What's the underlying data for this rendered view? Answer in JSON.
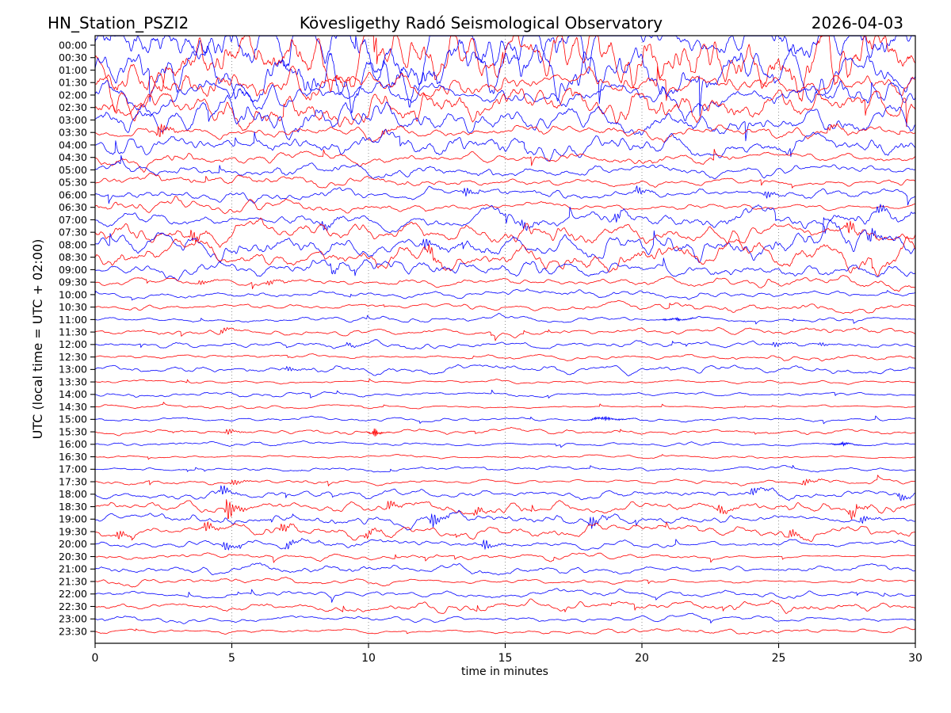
{
  "chart_data": {
    "type": "line",
    "subtype": "helicorder-seismogram",
    "title_left": "HN_Station_PSZI2",
    "title_center": "Kövesligethy Radó Seismological Observatory",
    "title_right": "2026-04-03",
    "xlabel": "time in minutes",
    "ylabel": "UTC (local time = UTC + 02:00)",
    "xlim": [
      0,
      30
    ],
    "x_ticks": [
      0,
      5,
      10,
      15,
      20,
      25,
      30
    ],
    "x_grid_minutes": [
      5,
      10,
      15,
      20,
      25
    ],
    "grid_style": "dotted",
    "legend": "none",
    "colors": {
      "b": "#0000ff",
      "r": "#ff0000",
      "frame": "#000000",
      "grid": "#888888",
      "background": "#ffffff"
    },
    "trace_note": "48 half-hour traces, 30 minutes each, alternating blue/red; amp = typical peak amplitude in px; events = transient bursts at minute m with peak amplitude a px",
    "traces": [
      {
        "label": "00:00",
        "c": "b",
        "amp": 22,
        "events": []
      },
      {
        "label": "00:30",
        "c": "r",
        "amp": 20,
        "events": []
      },
      {
        "label": "01:00",
        "c": "b",
        "amp": 22,
        "events": []
      },
      {
        "label": "01:30",
        "c": "r",
        "amp": 18,
        "events": []
      },
      {
        "label": "02:00",
        "c": "b",
        "amp": 17,
        "events": []
      },
      {
        "label": "02:30",
        "c": "r",
        "amp": 14,
        "events": []
      },
      {
        "label": "03:00",
        "c": "b",
        "amp": 12,
        "events": []
      },
      {
        "label": "03:30",
        "c": "r",
        "amp": 4.5,
        "events": [
          {
            "m": 2.3,
            "a": 12
          },
          {
            "m": 10.5,
            "a": 4
          },
          {
            "m": 26.8,
            "a": 5
          }
        ]
      },
      {
        "label": "04:00",
        "c": "b",
        "amp": 8,
        "events": []
      },
      {
        "label": "04:30",
        "c": "r",
        "amp": 6.5,
        "events": []
      },
      {
        "label": "05:00",
        "c": "b",
        "amp": 5.5,
        "events": []
      },
      {
        "label": "05:30",
        "c": "r",
        "amp": 4.5,
        "events": []
      },
      {
        "label": "06:00",
        "c": "b",
        "amp": 5,
        "events": [
          {
            "m": 13.5,
            "a": 7
          },
          {
            "m": 19.8,
            "a": 6
          },
          {
            "m": 24.5,
            "a": 6
          }
        ]
      },
      {
        "label": "06:30",
        "c": "r",
        "amp": 6,
        "events": []
      },
      {
        "label": "07:00",
        "c": "b",
        "amp": 6,
        "events": [
          {
            "m": 8.3,
            "a": 7
          },
          {
            "m": 15.6,
            "a": 7
          },
          {
            "m": 19.0,
            "a": 7
          },
          {
            "m": 28.6,
            "a": 8
          }
        ]
      },
      {
        "label": "07:30",
        "c": "r",
        "amp": 8,
        "events": [
          {
            "m": 3.5,
            "a": 10
          },
          {
            "m": 27.5,
            "a": 10
          }
        ]
      },
      {
        "label": "08:00",
        "c": "b",
        "amp": 8.5,
        "events": [
          {
            "m": 12.0,
            "a": 9
          },
          {
            "m": 28.3,
            "a": 10
          }
        ]
      },
      {
        "label": "08:30",
        "c": "r",
        "amp": 8.5,
        "events": [
          {
            "m": 12.2,
            "a": 9
          }
        ]
      },
      {
        "label": "09:00",
        "c": "b",
        "amp": 5,
        "events": [
          {
            "m": 8.6,
            "a": 6
          }
        ]
      },
      {
        "label": "09:30",
        "c": "r",
        "amp": 3.5,
        "events": [
          {
            "m": 3.8,
            "a": 4
          },
          {
            "m": 6.3,
            "a": 4
          }
        ]
      },
      {
        "label": "10:00",
        "c": "b",
        "amp": 2.2,
        "events": []
      },
      {
        "label": "10:30",
        "c": "r",
        "amp": 3,
        "events": []
      },
      {
        "label": "11:00",
        "c": "b",
        "amp": 2,
        "events": [
          {
            "m": 21.2,
            "a": 2.5,
            "f": 22,
            "w": 0.5
          }
        ]
      },
      {
        "label": "11:30",
        "c": "r",
        "amp": 2.8,
        "events": [
          {
            "m": 4.6,
            "a": 4
          }
        ]
      },
      {
        "label": "12:00",
        "c": "b",
        "amp": 2.6,
        "events": [
          {
            "m": 9.2,
            "a": 3
          },
          {
            "m": 24.8,
            "a": 4
          },
          {
            "m": 26.5,
            "a": 3
          }
        ]
      },
      {
        "label": "12:30",
        "c": "r",
        "amp": 1.9,
        "events": []
      },
      {
        "label": "13:00",
        "c": "b",
        "amp": 2.8,
        "events": [
          {
            "m": 7.0,
            "a": 4
          }
        ]
      },
      {
        "label": "13:30",
        "c": "r",
        "amp": 1.7,
        "events": []
      },
      {
        "label": "14:00",
        "c": "b",
        "amp": 2,
        "events": []
      },
      {
        "label": "14:30",
        "c": "r",
        "amp": 1.7,
        "events": []
      },
      {
        "label": "15:00",
        "c": "b",
        "amp": 2,
        "events": [
          {
            "m": 18.6,
            "a": 3.5,
            "f": 24,
            "w": 0.5
          }
        ]
      },
      {
        "label": "15:30",
        "c": "r",
        "amp": 1.8,
        "events": [
          {
            "m": 4.8,
            "a": 5
          },
          {
            "m": 10.2,
            "a": 7,
            "f": 18,
            "w": 0.2
          }
        ]
      },
      {
        "label": "16:00",
        "c": "b",
        "amp": 1.8,
        "events": [
          {
            "m": 27.3,
            "a": 3,
            "f": 20,
            "w": 0.4
          }
        ]
      },
      {
        "label": "16:30",
        "c": "r",
        "amp": 1.5,
        "events": []
      },
      {
        "label": "17:00",
        "c": "b",
        "amp": 1.7,
        "events": []
      },
      {
        "label": "17:30",
        "c": "r",
        "amp": 2.4,
        "events": [
          {
            "m": 5.0,
            "a": 5
          },
          {
            "m": 25.9,
            "a": 5
          }
        ]
      },
      {
        "label": "18:00",
        "c": "b",
        "amp": 3.4,
        "events": [
          {
            "m": 4.6,
            "a": 8
          },
          {
            "m": 24.0,
            "a": 6
          },
          {
            "m": 29.4,
            "a": 6
          }
        ]
      },
      {
        "label": "18:30",
        "c": "r",
        "amp": 4.2,
        "events": [
          {
            "m": 4.8,
            "a": 18
          },
          {
            "m": 10.7,
            "a": 7
          },
          {
            "m": 13.9,
            "a": 6
          },
          {
            "m": 22.8,
            "a": 7
          },
          {
            "m": 27.6,
            "a": 8
          }
        ]
      },
      {
        "label": "19:00",
        "c": "b",
        "amp": 3.6,
        "events": [
          {
            "m": 12.3,
            "a": 12
          },
          {
            "m": 18.1,
            "a": 10
          },
          {
            "m": 28.0,
            "a": 6
          }
        ]
      },
      {
        "label": "19:30",
        "c": "r",
        "amp": 4.2,
        "events": [
          {
            "m": 0.8,
            "a": 7
          },
          {
            "m": 4.0,
            "a": 8
          },
          {
            "m": 6.8,
            "a": 7
          },
          {
            "m": 9.9,
            "a": 6
          },
          {
            "m": 25.4,
            "a": 7
          }
        ]
      },
      {
        "label": "20:00",
        "c": "b",
        "amp": 3.2,
        "events": [
          {
            "m": 4.7,
            "a": 7
          },
          {
            "m": 7.0,
            "a": 6
          },
          {
            "m": 14.2,
            "a": 8
          }
        ]
      },
      {
        "label": "20:30",
        "c": "r",
        "amp": 3,
        "events": []
      },
      {
        "label": "21:00",
        "c": "b",
        "amp": 3.8,
        "events": []
      },
      {
        "label": "21:30",
        "c": "r",
        "amp": 3.3,
        "events": []
      },
      {
        "label": "22:00",
        "c": "b",
        "amp": 3,
        "events": []
      },
      {
        "label": "22:30",
        "c": "r",
        "amp": 3.3,
        "events": []
      },
      {
        "label": "23:00",
        "c": "b",
        "amp": 3,
        "events": []
      },
      {
        "label": "23:30",
        "c": "r",
        "amp": 2,
        "events": []
      }
    ]
  }
}
